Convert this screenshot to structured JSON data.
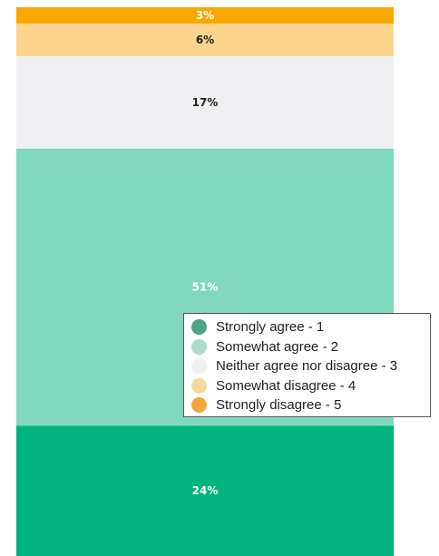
{
  "chart_data": {
    "type": "bar",
    "stacked": true,
    "series": [
      {
        "name": "Strongly agree - 1",
        "value": 24,
        "label": "24%",
        "color": "#00b37d",
        "label_color": "#ffffff"
      },
      {
        "name": "Somewhat agree - 2",
        "value": 51,
        "label": "51%",
        "color": "#80d9bf",
        "label_color": "#ffffff"
      },
      {
        "name": "Neither agree nor disagree - 3",
        "value": 17,
        "label": "17%",
        "color": "#efeff1",
        "label_color": "#222222"
      },
      {
        "name": "Somewhat disagree - 4",
        "value": 6,
        "label": "6%",
        "color": "#fdd58f",
        "label_color": "#222222"
      },
      {
        "name": "Strongly disagree - 5",
        "value": 3,
        "label": "3%",
        "color": "#f9a800",
        "label_color": "#ffffff"
      }
    ],
    "legend": {
      "placement": "right",
      "items": [
        {
          "label": "Strongly agree - 1",
          "color": "#4ca584"
        },
        {
          "label": "Somewhat agree - 2",
          "color": "#a9dcc9"
        },
        {
          "label": "Neither agree nor disagree - 3",
          "color": "#f0f0f0"
        },
        {
          "label": "Somewhat disagree - 4",
          "color": "#f7d89e"
        },
        {
          "label": "Strongly disagree - 5",
          "color": "#f3a53b"
        }
      ]
    },
    "grid": false
  }
}
